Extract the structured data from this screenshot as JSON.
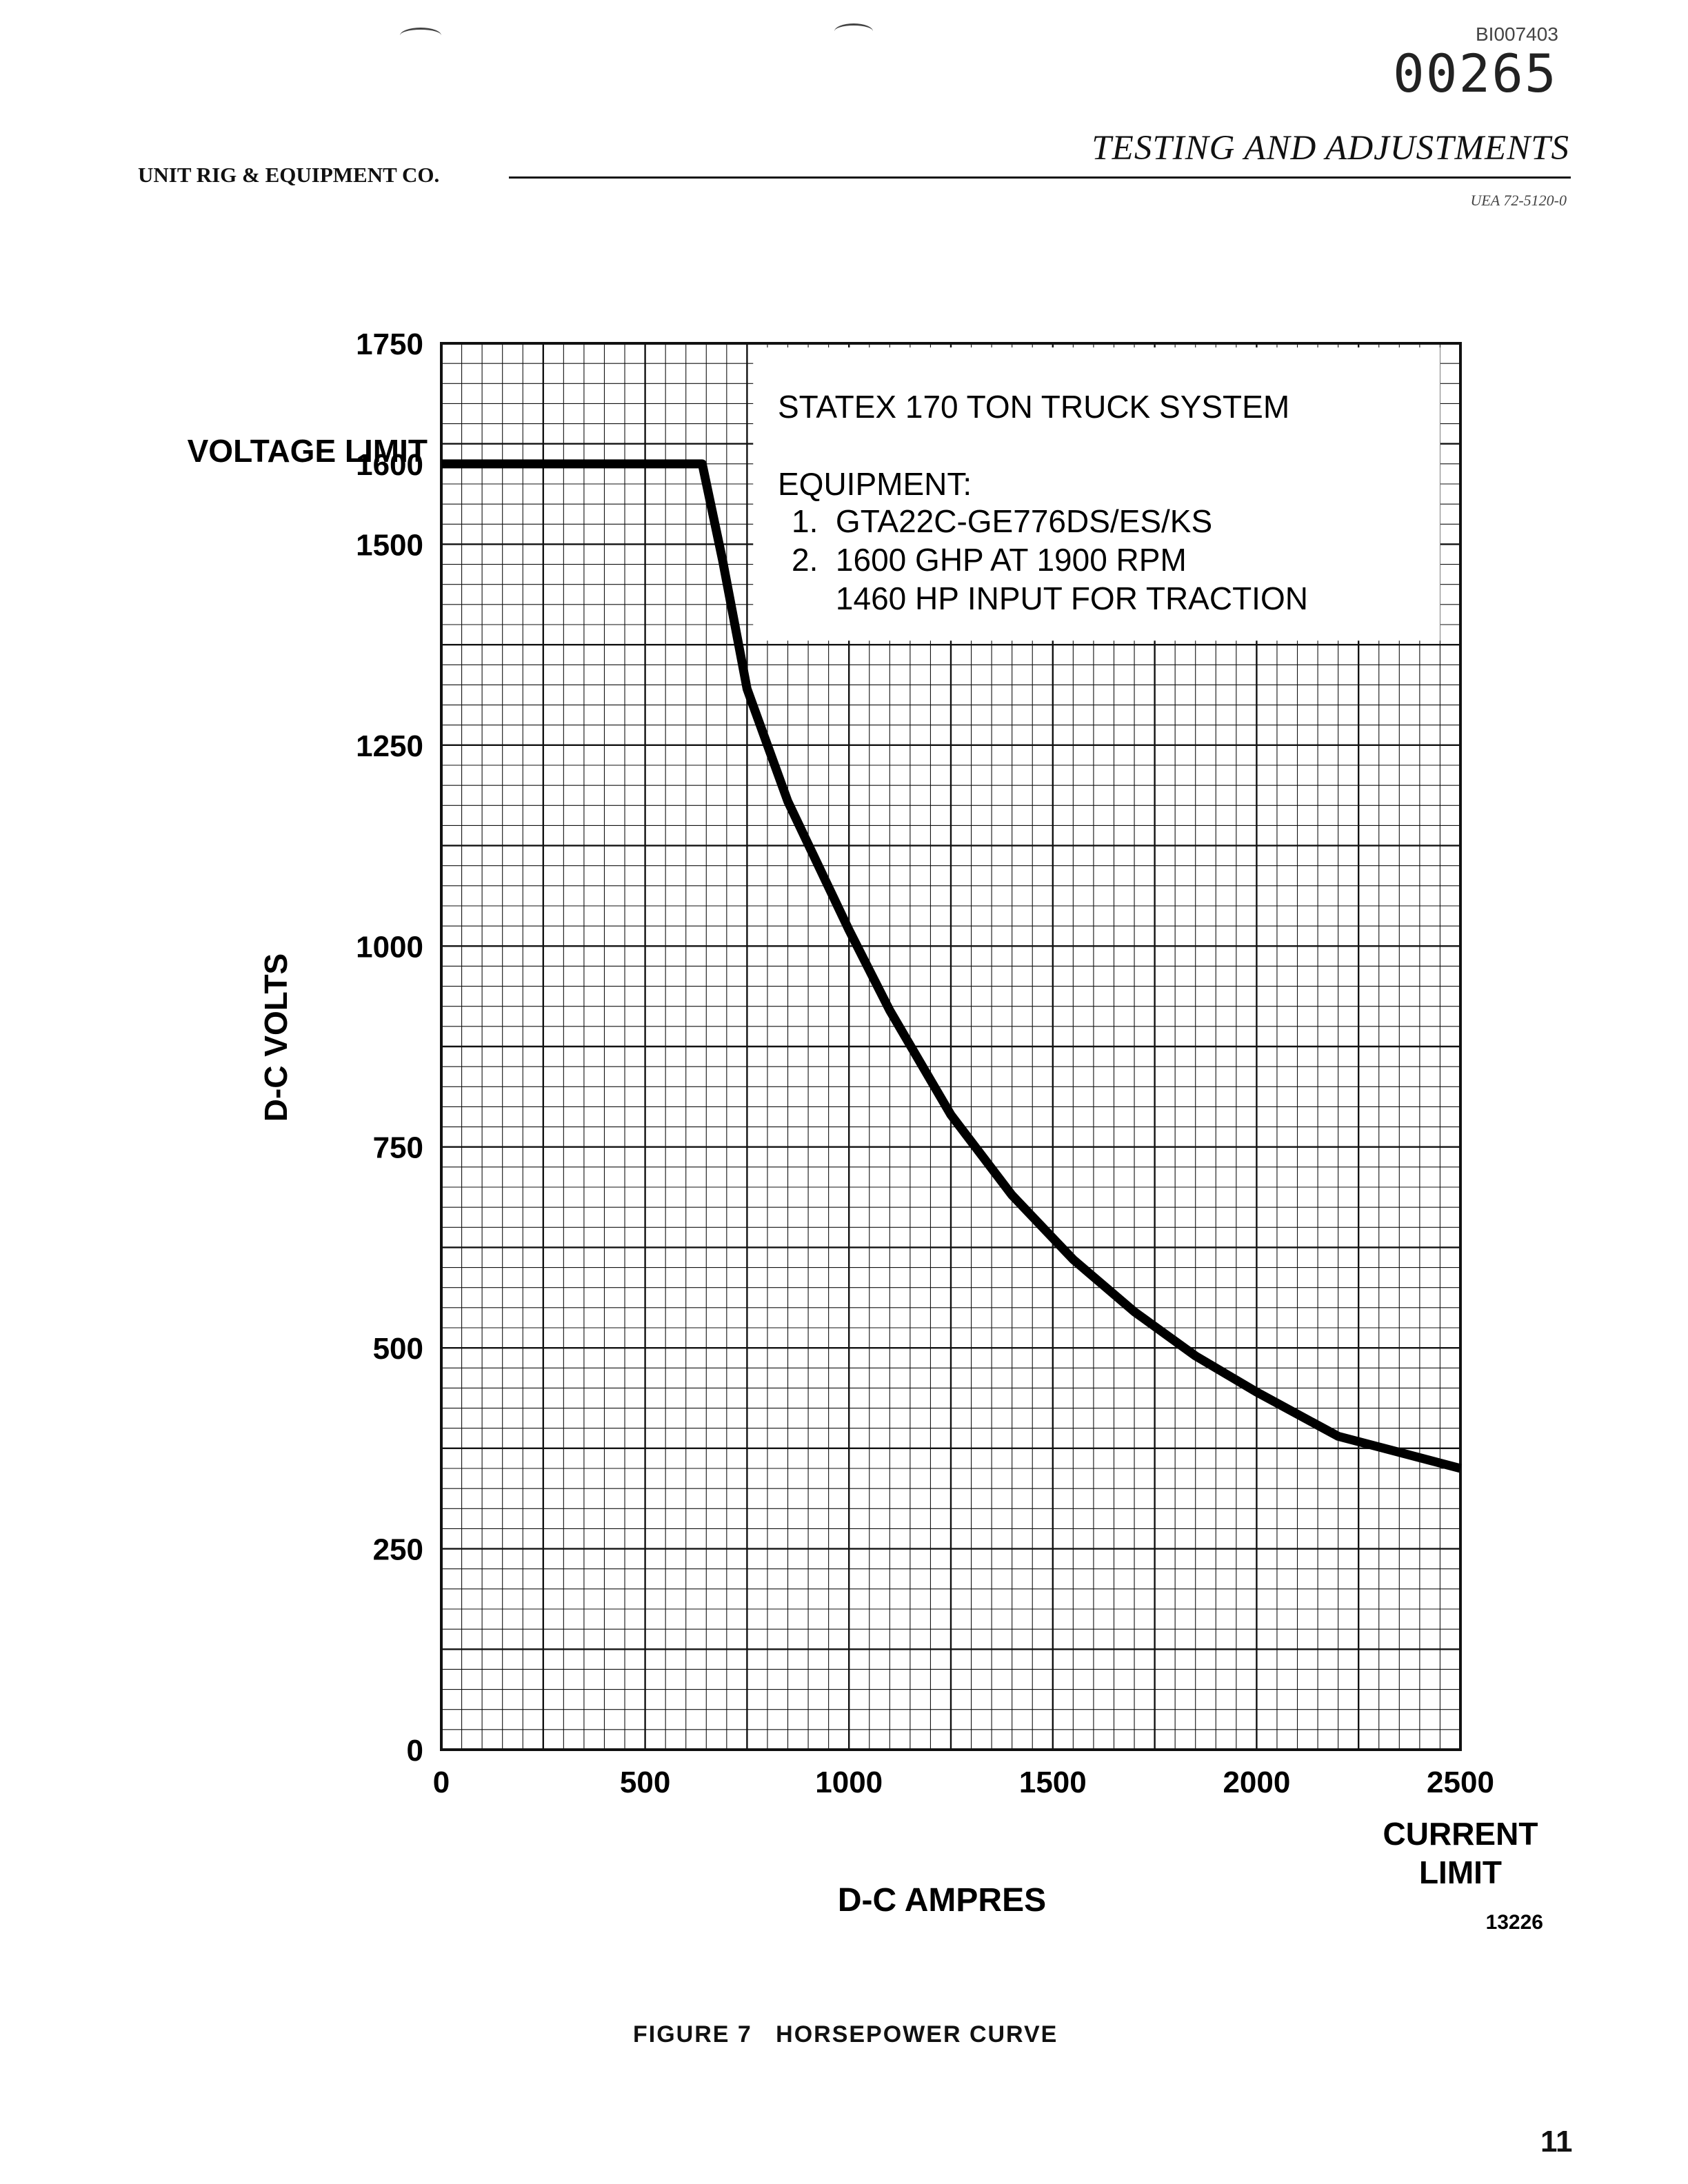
{
  "header": {
    "doc_id": "BI007403",
    "stamp": "00265",
    "company": "UNIT RIG & EQUIPMENT CO.",
    "section_title": "TESTING AND ADJUSTMENTS",
    "sub_ref": "UEA 72-5120-0"
  },
  "figure": {
    "caption": "FIGURE 7   HORSEPOWER CURVE",
    "ref_number": "13226"
  },
  "page_number": "11",
  "chart_data": {
    "type": "line",
    "xlabel": "D-C AMPRES",
    "ylabel": "D-C VOLTS",
    "xlim": [
      0,
      2500
    ],
    "ylim": [
      0,
      1750
    ],
    "x_ticks": [
      "0",
      "500",
      "1000",
      "1500",
      "2000",
      "2500"
    ],
    "y_ticks": [
      "0",
      "250",
      "500",
      "750",
      "1000",
      "1250",
      "1500",
      "1600",
      "1750"
    ],
    "y_limit_label": "VOLTAGE LIMIT",
    "x_limit_label": "CURRENT LIMIT",
    "grid": true,
    "series": [
      {
        "x": [
          0,
          640,
          690,
          750,
          850,
          1000,
          1100,
          1250,
          1400,
          1550,
          1700,
          1850,
          2000,
          2200,
          2500
        ],
        "y": [
          1600,
          1600,
          1480,
          1320,
          1180,
          1020,
          920,
          790,
          690,
          610,
          545,
          490,
          445,
          390,
          350
        ]
      }
    ],
    "annotation": {
      "title": "STATEX 170 TON TRUCK SYSTEM",
      "equipment_label": "EQUIPMENT:",
      "items": [
        "1.  GTA22C-GE776DS/ES/KS",
        "2.  1600 GHP AT 1900 RPM",
        "     1460 HP INPUT FOR TRACTION"
      ]
    }
  }
}
